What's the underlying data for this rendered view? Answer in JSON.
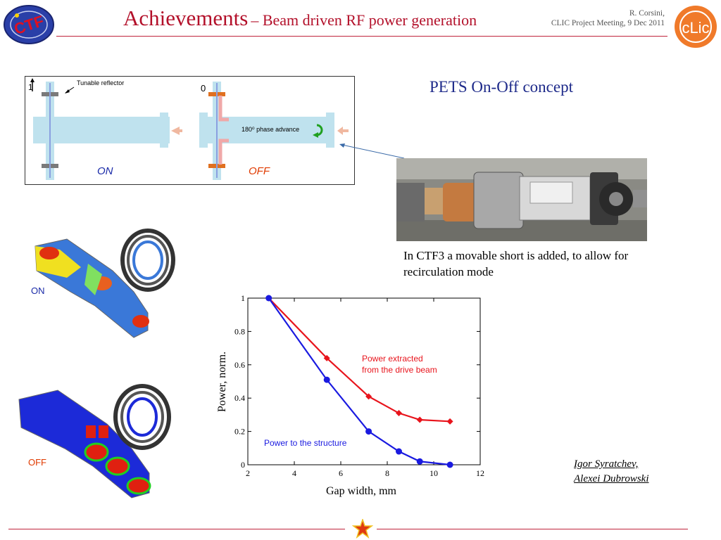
{
  "header": {
    "title_main": "Achievements",
    "title_sub": "– Beam driven RF power generation",
    "author_name": "R. Corsini,",
    "author_event": "CLIC Project Meeting, 9 Dec 2011",
    "logo_left": "CTF3",
    "logo_right": "CLIC"
  },
  "concept_diagram": {
    "label_one": "1",
    "label_zero": "0",
    "tunable_reflector": "Tunable reflector",
    "phase_advance": "180⁰ phase advance",
    "on_label": "ON",
    "off_label": "OFF"
  },
  "pets_heading": "PETS On-Off concept",
  "ctf3_text": "In CTF3 a movable short is added, to allow for recirculation mode",
  "simulations": {
    "on_label": "ON",
    "off_label": "OFF"
  },
  "credits": {
    "line1": "Igor Syratchev,",
    "line2": "Alexei Dubrowski"
  },
  "colors": {
    "title_red": "#b3102a",
    "heading_blue": "#1e2a8a",
    "series_red": "#e8141c",
    "series_blue": "#1a1ae0"
  },
  "chart_data": {
    "type": "line",
    "xlabel": "Gap width, mm",
    "ylabel": "Power, norm.",
    "xlim": [
      2,
      12
    ],
    "ylim": [
      0,
      1
    ],
    "xticks": [
      2,
      4,
      6,
      8,
      10,
      12
    ],
    "yticks": [
      0,
      0.2,
      0.4,
      0.6,
      0.8,
      1
    ],
    "ytick_labels": [
      "0",
      "0.2",
      "0.4",
      "0.6",
      "0.8",
      "1"
    ],
    "series": [
      {
        "name": "Power extracted from the drive beam",
        "label_line1": "Power extracted",
        "label_line2": "from the drive beam",
        "color": "#e8141c",
        "x": [
          2.9,
          5.4,
          7.2,
          8.5,
          9.4,
          10.7
        ],
        "y": [
          1.0,
          0.64,
          0.41,
          0.31,
          0.27,
          0.26
        ]
      },
      {
        "name": "Power to the structure",
        "label_line1": "Power to the structure",
        "color": "#1a1ae0",
        "x": [
          2.9,
          5.4,
          7.2,
          8.5,
          9.4,
          10.7
        ],
        "y": [
          1.0,
          0.51,
          0.2,
          0.08,
          0.02,
          0.0
        ]
      }
    ]
  }
}
